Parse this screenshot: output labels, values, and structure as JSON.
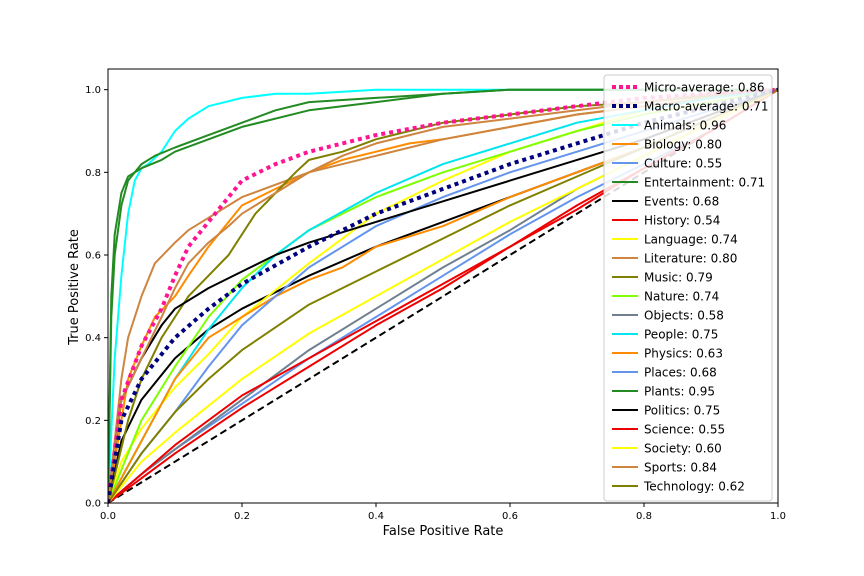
{
  "chart_data": {
    "type": "line",
    "title": "",
    "xlabel": "False Positive Rate",
    "ylabel": "True Positive Rate",
    "xlim": [
      0,
      1
    ],
    "ylim": [
      0,
      1.05
    ],
    "xticks": [
      0,
      0.2,
      0.4,
      0.6,
      0.8,
      1.0
    ],
    "xtick_labels": [
      "0.0",
      "0.2",
      "0.4",
      "0.6",
      "0.8",
      "1.0"
    ],
    "yticks": [
      0,
      0.2,
      0.4,
      0.6,
      0.8,
      1.0
    ],
    "ytick_labels": [
      "0.0",
      "0.2",
      "0.4",
      "0.6",
      "0.8",
      "1.0"
    ],
    "grid": false,
    "legend_position": "right",
    "diagonal": {
      "x": [
        0,
        1
      ],
      "y": [
        0,
        1
      ],
      "color": "#000000",
      "style": "dashed"
    },
    "series": [
      {
        "name": "Micro-average: 0.86",
        "color": "#ff1493",
        "style": "dotted",
        "x": [
          0,
          0.02,
          0.05,
          0.08,
          0.1,
          0.12,
          0.15,
          0.18,
          0.2,
          0.25,
          0.3,
          0.35,
          0.4,
          0.5,
          0.6,
          0.7,
          0.8,
          0.9,
          1.0
        ],
        "y": [
          0,
          0.25,
          0.38,
          0.47,
          0.55,
          0.62,
          0.68,
          0.74,
          0.78,
          0.82,
          0.85,
          0.87,
          0.89,
          0.92,
          0.94,
          0.96,
          0.98,
          0.99,
          1.0
        ]
      },
      {
        "name": "Macro-average: 0.71",
        "color": "#000080",
        "style": "dotted",
        "x": [
          0,
          0.02,
          0.05,
          0.1,
          0.15,
          0.2,
          0.3,
          0.4,
          0.5,
          0.6,
          0.7,
          0.8,
          0.9,
          1.0
        ],
        "y": [
          0,
          0.2,
          0.3,
          0.4,
          0.47,
          0.53,
          0.62,
          0.7,
          0.76,
          0.82,
          0.87,
          0.92,
          0.96,
          1.0
        ]
      },
      {
        "name": "Animals: 0.96",
        "color": "#00ffff",
        "style": "solid",
        "x": [
          0,
          0.01,
          0.02,
          0.03,
          0.04,
          0.05,
          0.06,
          0.08,
          0.1,
          0.12,
          0.15,
          0.2,
          0.25,
          0.3,
          0.4,
          0.5,
          0.6,
          0.7,
          0.8,
          1.0
        ],
        "y": [
          0,
          0.35,
          0.55,
          0.7,
          0.78,
          0.81,
          0.82,
          0.85,
          0.9,
          0.93,
          0.96,
          0.98,
          0.99,
          0.99,
          1.0,
          1.0,
          1.0,
          1.0,
          1.0,
          1.0
        ]
      },
      {
        "name": "Biology: 0.80",
        "color": "#ff8c00",
        "style": "solid",
        "x": [
          0,
          0.02,
          0.03,
          0.05,
          0.07,
          0.1,
          0.12,
          0.15,
          0.18,
          0.2,
          0.25,
          0.3,
          0.35,
          0.4,
          0.45,
          0.5,
          0.6,
          0.7,
          0.8,
          1.0
        ],
        "y": [
          0,
          0.2,
          0.3,
          0.38,
          0.45,
          0.5,
          0.55,
          0.62,
          0.68,
          0.72,
          0.76,
          0.8,
          0.83,
          0.85,
          0.87,
          0.88,
          0.91,
          0.94,
          0.96,
          1.0
        ]
      },
      {
        "name": "Culture: 0.55",
        "color": "#6495ed",
        "style": "solid",
        "x": [
          0,
          0.05,
          0.1,
          0.2,
          0.3,
          0.4,
          0.5,
          0.6,
          0.7,
          0.8,
          0.9,
          1.0
        ],
        "y": [
          0,
          0.07,
          0.13,
          0.24,
          0.35,
          0.45,
          0.55,
          0.65,
          0.74,
          0.82,
          0.9,
          1.0
        ]
      },
      {
        "name": "Entertainment: 0.71",
        "color": "#228b22",
        "style": "solid",
        "x": [
          0,
          0.005,
          0.01,
          0.02,
          0.03,
          0.04,
          0.05,
          0.07,
          0.1,
          0.15,
          0.2,
          0.25,
          0.3,
          0.4,
          0.5,
          0.6,
          0.7,
          0.8,
          1.0
        ],
        "y": [
          0,
          0.45,
          0.6,
          0.72,
          0.78,
          0.8,
          0.82,
          0.84,
          0.86,
          0.89,
          0.92,
          0.95,
          0.97,
          0.98,
          0.99,
          1.0,
          1.0,
          1.0,
          1.0
        ]
      },
      {
        "name": "Events: 0.68",
        "color": "#000000",
        "style": "solid",
        "x": [
          0,
          0.02,
          0.05,
          0.1,
          0.15,
          0.2,
          0.3,
          0.4,
          0.5,
          0.6,
          0.7,
          0.8,
          0.9,
          1.0
        ],
        "y": [
          0,
          0.15,
          0.25,
          0.35,
          0.42,
          0.47,
          0.55,
          0.62,
          0.68,
          0.74,
          0.8,
          0.86,
          0.93,
          1.0
        ]
      },
      {
        "name": "History: 0.54",
        "color": "#ee0000",
        "style": "solid",
        "x": [
          0,
          0.05,
          0.1,
          0.2,
          0.3,
          0.4,
          0.5,
          0.6,
          0.7,
          0.8,
          0.9,
          1.0
        ],
        "y": [
          0,
          0.06,
          0.12,
          0.23,
          0.33,
          0.43,
          0.52,
          0.62,
          0.71,
          0.81,
          0.9,
          1.0
        ]
      },
      {
        "name": "Language: 0.74",
        "color": "#ffff00",
        "style": "solid",
        "x": [
          0,
          0.02,
          0.05,
          0.1,
          0.15,
          0.2,
          0.3,
          0.4,
          0.5,
          0.6,
          0.7,
          0.8,
          0.9,
          1.0
        ],
        "y": [
          0,
          0.1,
          0.18,
          0.28,
          0.36,
          0.45,
          0.58,
          0.7,
          0.78,
          0.85,
          0.9,
          0.95,
          0.98,
          1.0
        ]
      },
      {
        "name": "Literature: 0.80",
        "color": "#cd853f",
        "style": "solid",
        "x": [
          0,
          0.01,
          0.02,
          0.03,
          0.05,
          0.07,
          0.1,
          0.12,
          0.15,
          0.2,
          0.25,
          0.3,
          0.4,
          0.5,
          0.6,
          0.7,
          0.8,
          0.9,
          1.0
        ],
        "y": [
          0,
          0.15,
          0.3,
          0.4,
          0.5,
          0.58,
          0.63,
          0.66,
          0.69,
          0.74,
          0.77,
          0.8,
          0.84,
          0.88,
          0.91,
          0.94,
          0.96,
          0.98,
          1.0
        ]
      },
      {
        "name": "Music: 0.79",
        "color": "#808000",
        "style": "solid",
        "x": [
          0,
          0.03,
          0.05,
          0.08,
          0.1,
          0.12,
          0.15,
          0.18,
          0.2,
          0.22,
          0.25,
          0.28,
          0.3,
          0.35,
          0.4,
          0.5,
          0.6,
          0.7,
          0.8,
          1.0
        ],
        "y": [
          0,
          0.2,
          0.3,
          0.4,
          0.45,
          0.5,
          0.55,
          0.6,
          0.65,
          0.7,
          0.75,
          0.8,
          0.83,
          0.85,
          0.88,
          0.92,
          0.94,
          0.96,
          0.97,
          1.0
        ]
      },
      {
        "name": "Nature: 0.74",
        "color": "#7fff00",
        "style": "solid",
        "x": [
          0,
          0.05,
          0.1,
          0.15,
          0.2,
          0.3,
          0.4,
          0.5,
          0.6,
          0.7,
          0.8,
          0.9,
          1.0
        ],
        "y": [
          0,
          0.2,
          0.33,
          0.45,
          0.54,
          0.66,
          0.74,
          0.8,
          0.85,
          0.9,
          0.94,
          0.97,
          1.0
        ]
      },
      {
        "name": "Objects: 0.58",
        "color": "#708090",
        "style": "solid",
        "x": [
          0,
          0.05,
          0.1,
          0.2,
          0.3,
          0.4,
          0.5,
          0.6,
          0.7,
          0.8,
          0.9,
          1.0
        ],
        "y": [
          0,
          0.07,
          0.13,
          0.25,
          0.37,
          0.47,
          0.57,
          0.66,
          0.76,
          0.84,
          0.92,
          1.0
        ]
      },
      {
        "name": "People: 0.75",
        "color": "#00e5ee",
        "style": "solid",
        "x": [
          0,
          0.05,
          0.1,
          0.15,
          0.2,
          0.25,
          0.3,
          0.4,
          0.5,
          0.6,
          0.7,
          0.8,
          0.9,
          1.0
        ],
        "y": [
          0,
          0.15,
          0.3,
          0.42,
          0.52,
          0.6,
          0.66,
          0.75,
          0.82,
          0.87,
          0.92,
          0.95,
          0.98,
          1.0
        ]
      },
      {
        "name": "Physics: 0.63",
        "color": "#ff8c00",
        "style": "solid",
        "x": [
          0,
          0.05,
          0.1,
          0.15,
          0.2,
          0.25,
          0.3,
          0.35,
          0.4,
          0.5,
          0.6,
          0.7,
          0.8,
          0.9,
          1.0
        ],
        "y": [
          0,
          0.15,
          0.3,
          0.4,
          0.45,
          0.5,
          0.54,
          0.57,
          0.62,
          0.67,
          0.74,
          0.8,
          0.86,
          0.93,
          1.0
        ]
      },
      {
        "name": "Places: 0.68",
        "color": "#6495ed",
        "style": "solid",
        "x": [
          0,
          0.05,
          0.1,
          0.15,
          0.2,
          0.3,
          0.4,
          0.5,
          0.6,
          0.7,
          0.8,
          0.9,
          1.0
        ],
        "y": [
          0,
          0.12,
          0.22,
          0.33,
          0.43,
          0.57,
          0.67,
          0.74,
          0.8,
          0.85,
          0.9,
          0.95,
          1.0
        ]
      },
      {
        "name": "Plants: 0.95",
        "color": "#228b22",
        "style": "solid",
        "x": [
          0,
          0.005,
          0.01,
          0.02,
          0.03,
          0.05,
          0.08,
          0.1,
          0.15,
          0.2,
          0.3,
          0.4,
          0.5,
          0.6,
          0.8,
          1.0
        ],
        "y": [
          0,
          0.5,
          0.65,
          0.75,
          0.79,
          0.81,
          0.83,
          0.85,
          0.88,
          0.91,
          0.95,
          0.97,
          0.99,
          1.0,
          1.0,
          1.0
        ]
      },
      {
        "name": "Politics: 0.75",
        "color": "#000000",
        "style": "solid",
        "x": [
          0,
          0.02,
          0.05,
          0.08,
          0.1,
          0.15,
          0.2,
          0.25,
          0.3,
          0.4,
          0.5,
          0.6,
          0.7,
          0.8,
          0.9,
          1.0
        ],
        "y": [
          0,
          0.25,
          0.35,
          0.43,
          0.47,
          0.52,
          0.56,
          0.6,
          0.63,
          0.68,
          0.73,
          0.78,
          0.83,
          0.88,
          0.94,
          1.0
        ]
      },
      {
        "name": "Science: 0.55",
        "color": "#ee0000",
        "style": "solid",
        "x": [
          0,
          0.05,
          0.1,
          0.2,
          0.3,
          0.4,
          0.5,
          0.6,
          0.7,
          0.8,
          0.9,
          1.0
        ],
        "y": [
          0,
          0.07,
          0.14,
          0.26,
          0.35,
          0.44,
          0.53,
          0.62,
          0.72,
          0.81,
          0.9,
          1.0
        ]
      },
      {
        "name": "Society: 0.60",
        "color": "#ffff00",
        "style": "solid",
        "x": [
          0,
          0.05,
          0.1,
          0.2,
          0.3,
          0.4,
          0.5,
          0.6,
          0.7,
          0.8,
          0.9,
          1.0
        ],
        "y": [
          0,
          0.1,
          0.17,
          0.3,
          0.41,
          0.5,
          0.59,
          0.68,
          0.76,
          0.84,
          0.92,
          1.0
        ]
      },
      {
        "name": "Sports: 0.84",
        "color": "#cd853f",
        "style": "solid",
        "x": [
          0,
          0.02,
          0.05,
          0.08,
          0.1,
          0.12,
          0.15,
          0.18,
          0.2,
          0.25,
          0.3,
          0.35,
          0.4,
          0.45,
          0.5,
          0.6,
          0.7,
          0.8,
          0.9,
          1.0
        ],
        "y": [
          0,
          0.25,
          0.35,
          0.45,
          0.52,
          0.58,
          0.63,
          0.67,
          0.7,
          0.75,
          0.8,
          0.84,
          0.87,
          0.89,
          0.91,
          0.93,
          0.95,
          0.97,
          0.99,
          1.0
        ]
      },
      {
        "name": "Technology: 0.62",
        "color": "#808000",
        "style": "solid",
        "x": [
          0,
          0.05,
          0.1,
          0.15,
          0.2,
          0.3,
          0.4,
          0.5,
          0.6,
          0.7,
          0.8,
          0.9,
          1.0
        ],
        "y": [
          0,
          0.12,
          0.22,
          0.3,
          0.37,
          0.48,
          0.56,
          0.64,
          0.72,
          0.79,
          0.86,
          0.93,
          1.0
        ]
      }
    ]
  }
}
